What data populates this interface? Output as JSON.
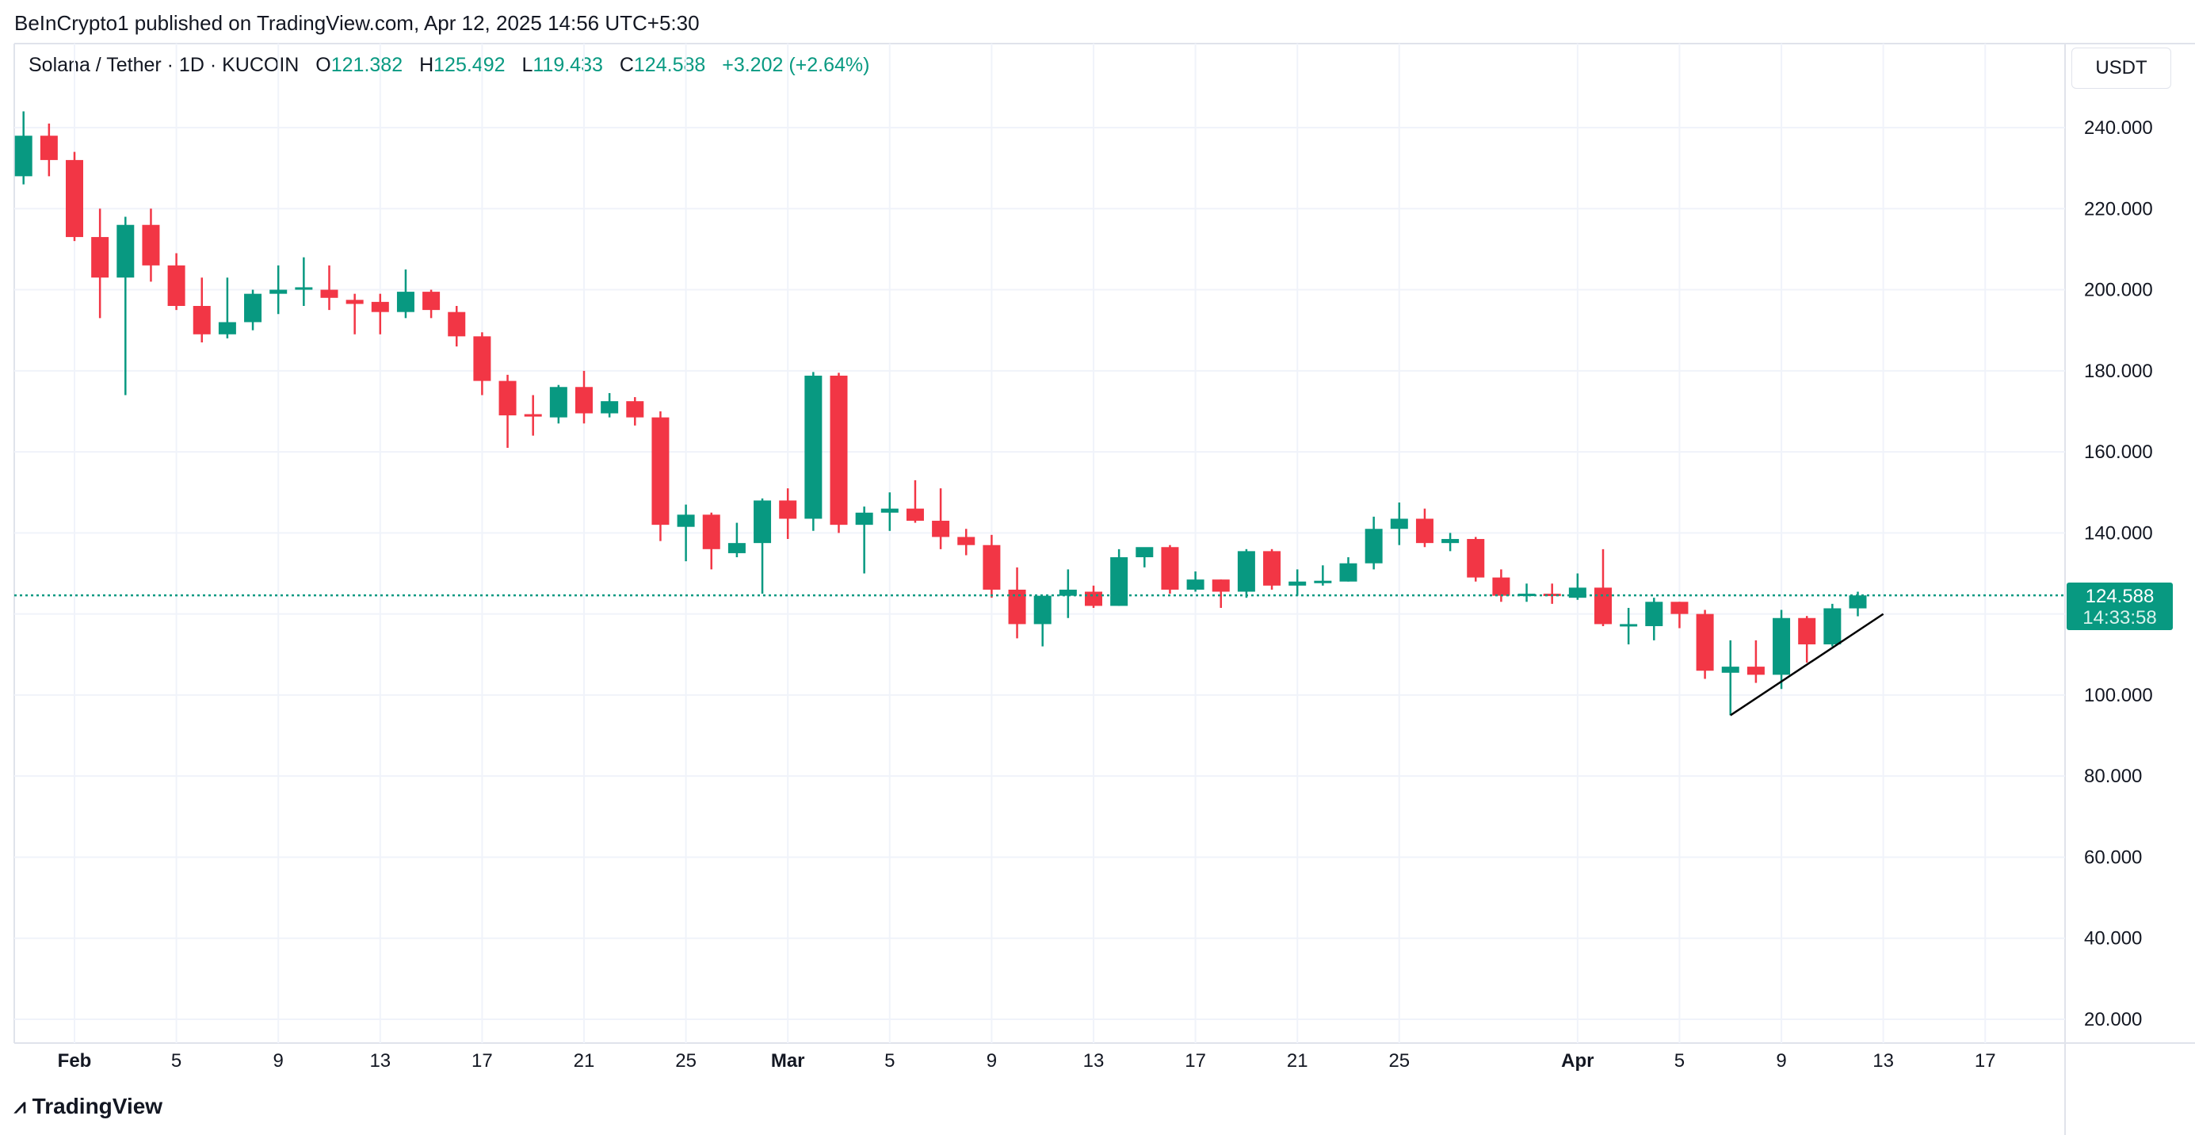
{
  "publish_line": "BeInCrypto1 published on TradingView.com, Apr 12, 2025 14:56 UTC+5:30",
  "legend": {
    "symbol": "Solana / Tether · 1D · KUCOIN",
    "open_label": "O",
    "open": "121.382",
    "high_label": "H",
    "high": "125.492",
    "low_label": "L",
    "low": "119.433",
    "close_label": "C",
    "close": "124.588",
    "change": "+3.202 (+2.64%)"
  },
  "currency_button": "USDT",
  "last_price": {
    "price": "124.588",
    "countdown": "14:33:58"
  },
  "brand": "TradingView",
  "colors": {
    "up": "#089981",
    "down": "#f23645",
    "grid": "#f0f3fa",
    "trendline": "#000000"
  },
  "chart_data": {
    "type": "candlestick",
    "ylim": [
      10,
      250
    ],
    "y_ticks": [
      240,
      220,
      200,
      180,
      160,
      140,
      120,
      100,
      80,
      60,
      40,
      20
    ],
    "y_tick_labels": [
      "240.000",
      "220.000",
      "200.000",
      "180.000",
      "160.000",
      "140.000",
      "",
      "100.000",
      "80.000",
      "60.000",
      "40.000",
      "20.000"
    ],
    "x_ticks": [
      {
        "date": "2025-02-01",
        "label": "Feb"
      },
      {
        "date": "2025-02-05",
        "label": "5"
      },
      {
        "date": "2025-02-09",
        "label": "9"
      },
      {
        "date": "2025-02-13",
        "label": "13"
      },
      {
        "date": "2025-02-17",
        "label": "17"
      },
      {
        "date": "2025-02-21",
        "label": "21"
      },
      {
        "date": "2025-02-25",
        "label": "25"
      },
      {
        "date": "2025-03-01",
        "label": "Mar"
      },
      {
        "date": "2025-03-05",
        "label": "5"
      },
      {
        "date": "2025-03-09",
        "label": "9"
      },
      {
        "date": "2025-03-13",
        "label": "13"
      },
      {
        "date": "2025-03-17",
        "label": "17"
      },
      {
        "date": "2025-03-21",
        "label": "21"
      },
      {
        "date": "2025-03-25",
        "label": "25"
      },
      {
        "date": "2025-04-01",
        "label": "Apr"
      },
      {
        "date": "2025-04-05",
        "label": "5"
      },
      {
        "date": "2025-04-09",
        "label": "9"
      },
      {
        "date": "2025-04-13",
        "label": "13"
      },
      {
        "date": "2025-04-17",
        "label": "17"
      }
    ],
    "x_range": [
      "2025-01-29",
      "2025-04-21"
    ],
    "candles": [
      [
        "2025-01-30",
        228,
        244,
        226,
        238
      ],
      [
        "2025-01-31",
        238,
        241,
        228,
        232
      ],
      [
        "2025-02-01",
        232,
        234,
        212,
        213
      ],
      [
        "2025-02-02",
        213,
        220,
        193,
        203
      ],
      [
        "2025-02-03",
        203,
        218,
        174,
        216
      ],
      [
        "2025-02-04",
        216,
        220,
        202,
        206
      ],
      [
        "2025-02-05",
        206,
        209,
        195,
        196
      ],
      [
        "2025-02-06",
        196,
        203,
        187,
        189
      ],
      [
        "2025-02-07",
        189,
        203,
        188,
        192
      ],
      [
        "2025-02-08",
        192,
        200,
        190,
        199
      ],
      [
        "2025-02-09",
        199,
        206,
        194,
        200
      ],
      [
        "2025-02-10",
        200,
        208,
        196,
        200.6
      ],
      [
        "2025-02-11",
        200,
        206,
        195,
        198
      ],
      [
        "2025-02-12",
        197.5,
        199,
        189,
        196.5
      ],
      [
        "2025-02-13",
        197,
        199,
        189,
        194.5
      ],
      [
        "2025-02-14",
        194.5,
        205,
        193,
        199.5
      ],
      [
        "2025-02-15",
        199.5,
        200,
        193,
        195
      ],
      [
        "2025-02-16",
        194.5,
        196,
        186,
        188.5
      ],
      [
        "2025-02-17",
        188.5,
        189.5,
        174,
        177.5
      ],
      [
        "2025-02-18",
        177.5,
        179,
        161,
        169
      ],
      [
        "2025-02-19",
        169.3,
        174,
        164,
        168.7
      ],
      [
        "2025-02-20",
        168.5,
        176.5,
        167,
        176
      ],
      [
        "2025-02-21",
        176,
        180,
        167,
        169.5
      ],
      [
        "2025-02-22",
        169.5,
        174.5,
        168.5,
        172.5
      ],
      [
        "2025-02-23",
        172.5,
        173.5,
        166.5,
        168.5
      ],
      [
        "2025-02-24",
        168.5,
        170,
        138,
        142
      ],
      [
        "2025-02-25",
        141.5,
        147,
        133,
        144.5
      ],
      [
        "2025-02-26",
        144.5,
        145,
        131,
        136
      ],
      [
        "2025-02-27",
        135,
        142.5,
        134,
        137.5
      ],
      [
        "2025-02-28",
        137.5,
        148.5,
        125,
        148
      ],
      [
        "2025-03-01",
        148,
        151,
        138.5,
        143.5
      ],
      [
        "2025-03-02",
        143.5,
        179.7,
        140.5,
        178.8
      ],
      [
        "2025-03-03",
        178.8,
        179.5,
        140,
        142
      ],
      [
        "2025-03-04",
        142,
        146.5,
        130,
        145
      ],
      [
        "2025-03-05",
        145,
        150,
        140.5,
        146
      ],
      [
        "2025-03-06",
        146,
        153,
        142.5,
        143
      ],
      [
        "2025-03-07",
        143,
        151,
        136,
        139
      ],
      [
        "2025-03-08",
        139,
        141,
        134.5,
        137
      ],
      [
        "2025-03-09",
        137,
        139.5,
        124,
        126
      ],
      [
        "2025-03-10",
        126,
        131.5,
        114,
        117.5
      ],
      [
        "2025-03-11",
        117.5,
        124,
        112,
        124.5
      ],
      [
        "2025-03-12",
        124.5,
        131,
        119,
        126
      ],
      [
        "2025-03-13",
        125.5,
        127,
        121.5,
        122
      ],
      [
        "2025-03-14",
        122,
        136,
        122,
        134
      ],
      [
        "2025-03-15",
        134,
        135.5,
        131.5,
        136.5
      ],
      [
        "2025-03-16",
        136.5,
        137,
        125,
        126
      ],
      [
        "2025-03-17",
        126,
        130.5,
        125.5,
        128.5
      ],
      [
        "2025-03-18",
        128.5,
        128.5,
        121.5,
        125.5
      ],
      [
        "2025-03-19",
        125.5,
        136,
        124,
        135.5
      ],
      [
        "2025-03-20",
        135.5,
        136,
        126,
        127
      ],
      [
        "2025-03-21",
        127,
        131,
        124.5,
        128
      ],
      [
        "2025-03-22",
        127.6,
        132,
        127,
        128.2
      ],
      [
        "2025-03-23",
        128,
        134,
        128,
        132.5
      ],
      [
        "2025-03-24",
        132.5,
        144,
        131,
        141
      ],
      [
        "2025-03-25",
        141,
        147.5,
        137,
        143.5
      ],
      [
        "2025-03-26",
        143.5,
        146,
        136.5,
        137.5
      ],
      [
        "2025-03-27",
        137.5,
        140,
        135.5,
        138.5
      ],
      [
        "2025-03-28",
        138.5,
        139,
        128,
        129
      ],
      [
        "2025-03-29",
        129,
        131,
        123,
        124.5
      ],
      [
        "2025-03-30",
        124.5,
        127.5,
        123,
        125
      ],
      [
        "2025-03-31",
        125,
        127.5,
        122.5,
        124.5
      ],
      [
        "2025-04-01",
        124,
        130,
        123.5,
        126.5
      ],
      [
        "2025-04-02",
        126.5,
        136,
        117,
        117.5
      ],
      [
        "2025-04-03",
        117.5,
        121.5,
        112.5,
        117.5
      ],
      [
        "2025-04-04",
        117,
        124,
        113.5,
        123
      ],
      [
        "2025-04-05",
        123,
        123,
        116.5,
        120
      ],
      [
        "2025-04-06",
        120,
        121,
        104,
        106
      ],
      [
        "2025-04-07",
        105.5,
        113.5,
        95,
        107
      ],
      [
        "2025-04-08",
        107,
        113.5,
        103,
        105
      ],
      [
        "2025-04-09",
        105,
        121,
        101.5,
        119
      ],
      [
        "2025-04-10",
        119,
        119.5,
        108,
        112.5
      ],
      [
        "2025-04-11",
        112.5,
        122.5,
        112,
        121.4
      ],
      [
        "2025-04-12",
        121.382,
        125.492,
        119.433,
        124.588
      ]
    ],
    "trendline": {
      "from": [
        "2025-04-07",
        95
      ],
      "to": [
        "2025-04-13",
        120
      ]
    },
    "last_price_line": 124.588,
    "grid": true
  }
}
